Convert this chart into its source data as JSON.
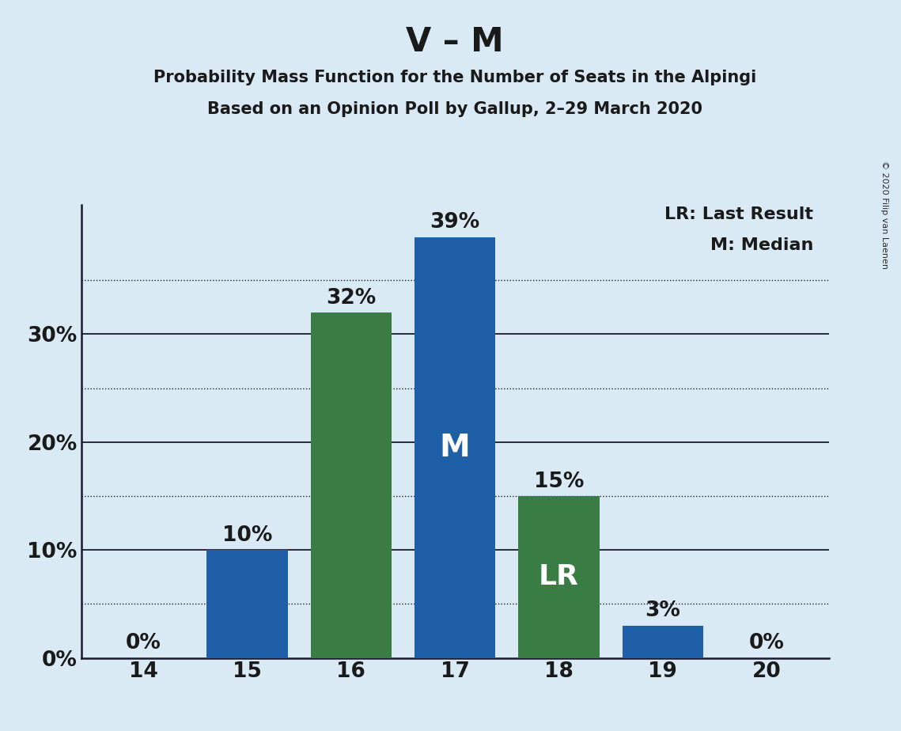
{
  "title": "V – M",
  "subtitle1": "Probability Mass Function for the Number of Seats in the Alpingi",
  "subtitle2": "Based on an Opinion Poll by Gallup, 2–29 March 2020",
  "copyright": "© 2020 Filip van Laenen",
  "legend_lr": "LR: Last Result",
  "legend_m": "M: Median",
  "categories": [
    14,
    15,
    16,
    17,
    18,
    19,
    20
  ],
  "values": [
    0,
    10,
    32,
    39,
    15,
    3,
    0
  ],
  "bar_colors": [
    "#1e5fa8",
    "#1e5fa8",
    "#3a7d44",
    "#1e5fa8",
    "#3a7d44",
    "#1e5fa8",
    "#1e5fa8"
  ],
  "median_bar_idx": 3,
  "lr_bar_idx": 4,
  "background_color": "#daeaf5",
  "ylim": [
    0,
    42
  ],
  "yticks": [
    0,
    10,
    20,
    30
  ],
  "solid_gridlines": [
    10,
    20,
    30
  ],
  "dotted_gridlines": [
    5,
    15,
    25,
    35
  ],
  "title_fontsize": 30,
  "subtitle_fontsize": 15,
  "ylabel_fontsize": 19,
  "xlabel_fontsize": 19,
  "bar_label_fontsize": 19,
  "inner_label_fontsize_m": 28,
  "inner_label_fontsize_lr": 26,
  "legend_fontsize": 16,
  "bar_width": 0.78
}
